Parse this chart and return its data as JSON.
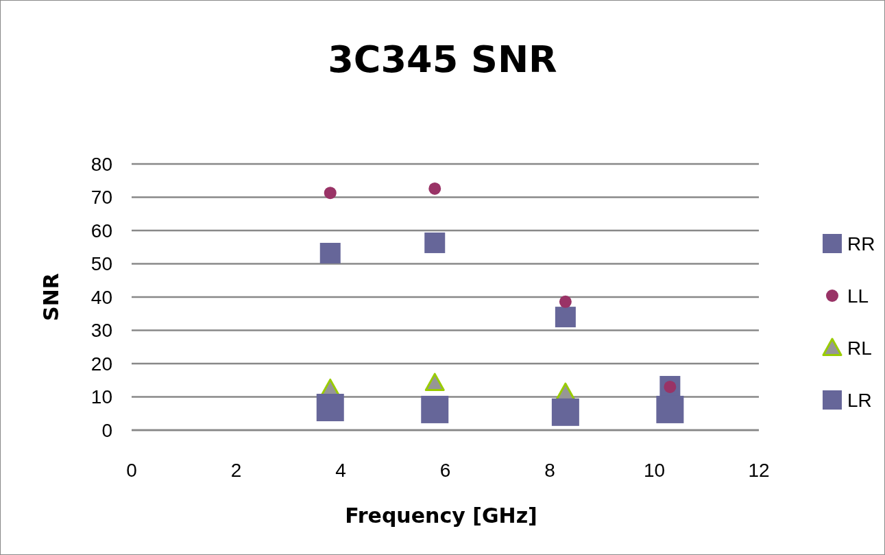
{
  "chart_data": {
    "type": "scatter",
    "title": "3C345 SNR",
    "xlabel": "Frequency [GHz]",
    "ylabel": "SNR",
    "xlim": [
      0,
      12
    ],
    "xticks": [
      0,
      2,
      4,
      6,
      8,
      10,
      12
    ],
    "ylim": [
      0,
      80
    ],
    "yticks": [
      0,
      10,
      20,
      30,
      40,
      50,
      60,
      70,
      80
    ],
    "grid": "y",
    "legend": "right",
    "series": [
      {
        "name": "RR",
        "color": "#666699",
        "marker": "square",
        "x": [
          3.8,
          5.8,
          8.3,
          10.3
        ],
        "values": [
          53.2,
          56.3,
          34,
          13.2
        ]
      },
      {
        "name": "LL",
        "color": "#993366",
        "marker": "circle",
        "x": [
          3.8,
          5.8,
          8.3,
          10.3
        ],
        "values": [
          71.3,
          72.6,
          38.6,
          13
        ]
      },
      {
        "name": "RL",
        "color": "#969696",
        "marker": "triangle",
        "x": [
          3.8,
          5.8,
          8.3
        ],
        "values": [
          12.5,
          14.2,
          11.3
        ]
      },
      {
        "name": "LR",
        "color": "#666699",
        "marker": "square",
        "x": [
          3.8,
          5.8,
          8.3,
          10.3
        ],
        "values": [
          6.8,
          6.2,
          5.4,
          6.2
        ]
      }
    ]
  }
}
